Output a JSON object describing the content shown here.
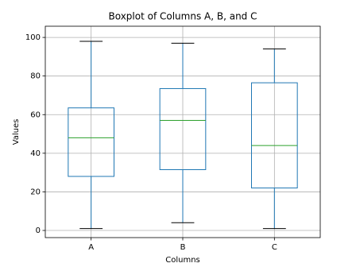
{
  "chart_data": {
    "type": "box",
    "title": "Boxplot of Columns A, B, and C",
    "x_label": "Columns",
    "y_label": "Values",
    "categories": [
      "A",
      "B",
      "C"
    ],
    "boxes": [
      {
        "min": 1,
        "q1": 28,
        "median": 48,
        "q3": 63.5,
        "max": 98
      },
      {
        "min": 4,
        "q1": 31.5,
        "median": 57,
        "q3": 73.5,
        "max": 97
      },
      {
        "min": 1,
        "q1": 22,
        "median": 44,
        "q3": 76.5,
        "max": 94
      }
    ],
    "box_color": "#1f77b4",
    "median_color": "#2ca02c",
    "cap_color": "#000000",
    "ylim": [
      -3.7,
      105.8
    ],
    "yticks": [
      0,
      20,
      40,
      60,
      80,
      100
    ],
    "grid": true
  }
}
